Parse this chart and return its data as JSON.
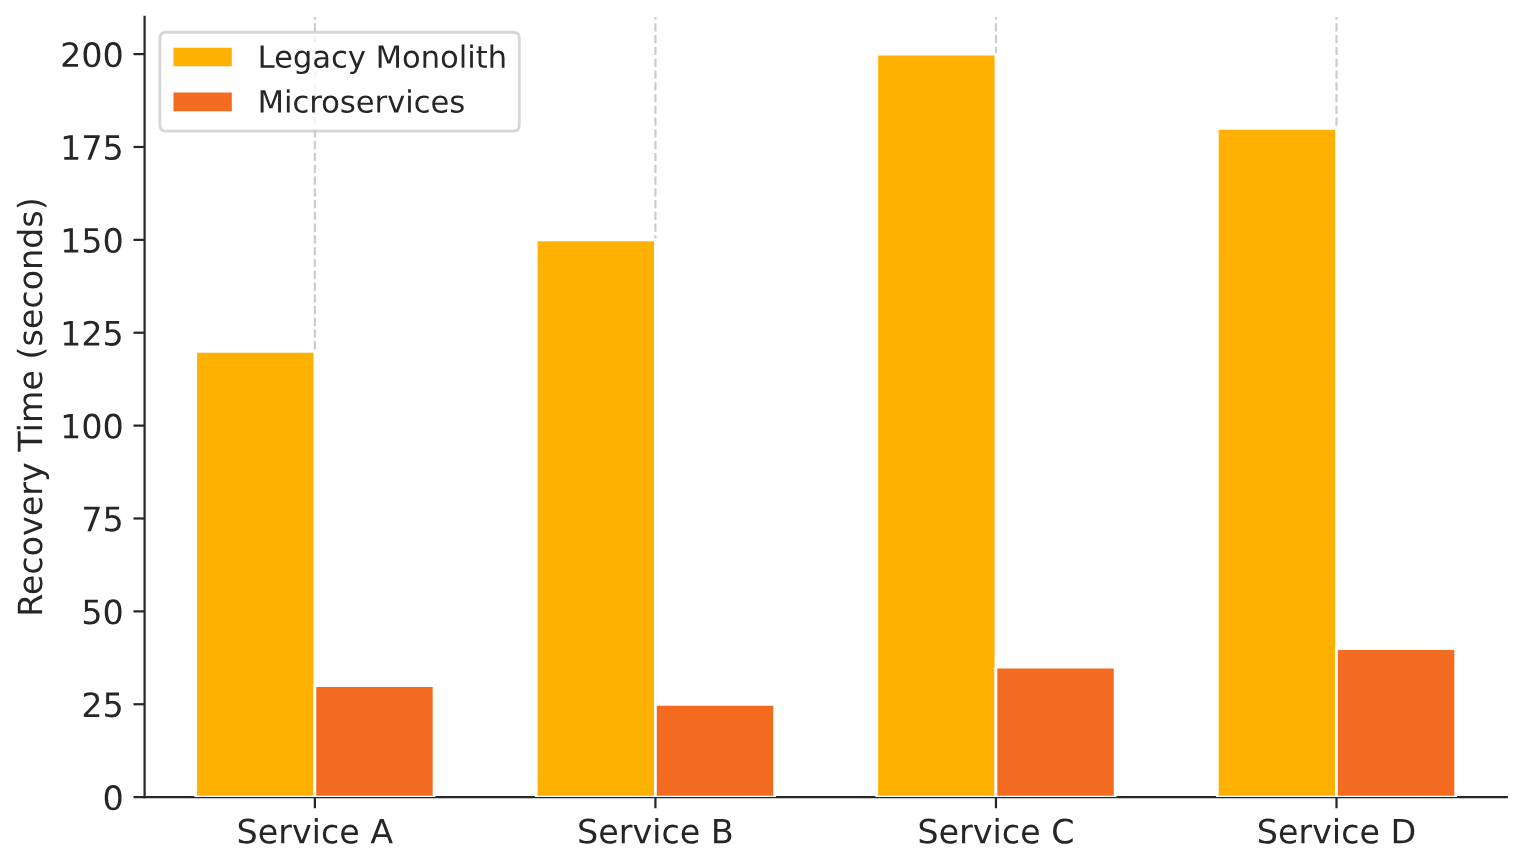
{
  "chart_data": {
    "type": "bar",
    "ylabel": "Recovery Time (seconds)",
    "categories": [
      "Service A",
      "Service B",
      "Service C",
      "Service D"
    ],
    "series": [
      {
        "name": "Legacy Monolith",
        "color": "#ffb000",
        "values": [
          120,
          150,
          200,
          180
        ]
      },
      {
        "name": "Microservices",
        "color": "#f26b21",
        "values": [
          30,
          25,
          35,
          40
        ]
      }
    ],
    "ylim": [
      0,
      210
    ],
    "yticks": [
      0,
      25,
      50,
      75,
      100,
      125,
      150,
      175,
      200
    ],
    "grid": "x",
    "legend": "top left"
  }
}
